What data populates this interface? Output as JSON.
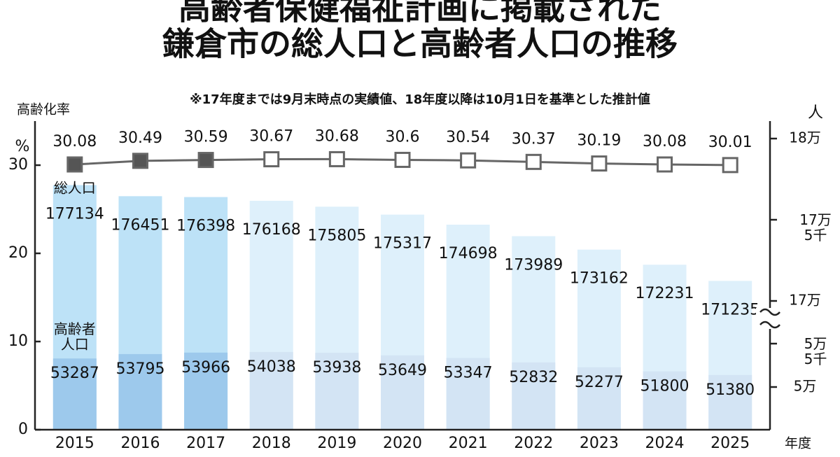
{
  "chart_data": {
    "type": "bar-line",
    "title": "高齢者保健福祉計画に掲載された\n鎌倉市の総人口と高齢者人口の推移",
    "subtitle": "※17年度までは9月末時点の実績値、18年度以降は10月1日を基準とした推計値",
    "y_label": "高齢化率",
    "y_unit": "%",
    "y2_unit": "人",
    "x_label": "年度",
    "categories": [
      "2015",
      "2016",
      "2017",
      "2018",
      "2019",
      "2020",
      "2021",
      "2022",
      "2023",
      "2024",
      "2025"
    ],
    "series": [
      {
        "name": "総人口",
        "axis": "y2",
        "values": [
          177134,
          176451,
          176398,
          176168,
          175805,
          175317,
          174698,
          173989,
          173162,
          172231,
          171235
        ],
        "colors": [
          "#bde2f7",
          "#bde2f7",
          "#bde2f7",
          "#def0fb",
          "#def0fb",
          "#def0fb",
          "#def0fb",
          "#def0fb",
          "#def0fb",
          "#def0fb",
          "#def0fb"
        ]
      },
      {
        "name": "高齢者\n人口",
        "axis": "y2",
        "values": [
          53287,
          53795,
          53966,
          54038,
          53938,
          53649,
          53347,
          52832,
          52277,
          51800,
          51380
        ],
        "colors": [
          "#9dc9ec",
          "#9dc9ec",
          "#9dc9ec",
          "#d3e4f4",
          "#d3e4f4",
          "#d3e4f4",
          "#d3e4f4",
          "#d3e4f4",
          "#d3e4f4",
          "#d3e4f4",
          "#d3e4f4"
        ]
      },
      {
        "name": "高齢化率",
        "axis": "y",
        "color": "#666666",
        "values": [
          30.08,
          30.49,
          30.59,
          30.67,
          30.68,
          30.6,
          30.54,
          30.37,
          30.19,
          30.08,
          30.01
        ],
        "marker_fills": [
          "#555555",
          "#555555",
          "#555555",
          "#ffffff",
          "#ffffff",
          "#ffffff",
          "#ffffff",
          "#ffffff",
          "#ffffff",
          "#ffffff",
          "#ffffff"
        ]
      }
    ],
    "ylim": [
      0,
      35
    ],
    "yticks": [
      0,
      10,
      20,
      30
    ],
    "y2lim": [
      50000,
      180000
    ],
    "y2break": [
      55000,
      170000
    ],
    "y2ticks": [
      {
        "value": 180000,
        "label": "18万"
      },
      {
        "value": 175000,
        "label": "17万\n5千"
      },
      {
        "value": 170000,
        "label": "17万"
      },
      {
        "value": 55000,
        "label": "5万\n5千"
      },
      {
        "value": 50000,
        "label": "5万"
      }
    ]
  }
}
